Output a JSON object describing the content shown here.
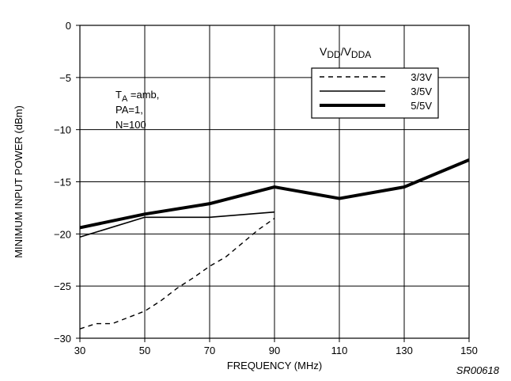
{
  "chart_data": {
    "type": "line",
    "title": "",
    "xlabel": "FREQUENCY (MHz)",
    "ylabel": "MINIMUM INPUT POWER (dBm)",
    "xlim": [
      30,
      150
    ],
    "ylim": [
      -30,
      0
    ],
    "x_ticks": [
      30,
      50,
      70,
      90,
      110,
      130,
      150
    ],
    "y_ticks": [
      0,
      -5,
      -10,
      -15,
      -20,
      -25,
      -30
    ],
    "x_tick_labels": [
      "30",
      "50",
      "70",
      "90",
      "110",
      "130",
      "150"
    ],
    "y_tick_labels": [
      "0",
      "−5",
      "−10",
      "−15",
      "−20",
      "−25",
      "−30"
    ],
    "grid": true,
    "legend_title_main": "V",
    "legend_title_sub1": "DD",
    "legend_title_slash": "/V",
    "legend_title_sub2": "DDA",
    "legend_position": "top-right",
    "annotation": {
      "t_main": "T",
      "t_sub": "A",
      "t_rest": " =amb,",
      "line2": "PA=1,",
      "line3": "N=100"
    },
    "figure_code": "SR00618",
    "series": [
      {
        "name": "3/3V",
        "style": "dashed",
        "x": [
          30,
          35,
          40,
          45,
          50,
          55,
          60,
          65,
          70,
          75,
          80,
          85,
          90
        ],
        "y": [
          -29.1,
          -28.6,
          -28.6,
          -28.0,
          -27.4,
          -26.4,
          -25.2,
          -24.2,
          -23.1,
          -22.2,
          -20.9,
          -19.6,
          -18.5
        ]
      },
      {
        "name": "3/5V",
        "style": "thin",
        "x": [
          30,
          50,
          70,
          90
        ],
        "y": [
          -20.3,
          -18.4,
          -18.4,
          -17.9
        ]
      },
      {
        "name": "5/5V",
        "style": "thick",
        "x": [
          30,
          50,
          70,
          90,
          110,
          130,
          150
        ],
        "y": [
          -19.4,
          -18.1,
          -17.1,
          -15.5,
          -16.6,
          -15.5,
          -12.9
        ]
      }
    ]
  }
}
